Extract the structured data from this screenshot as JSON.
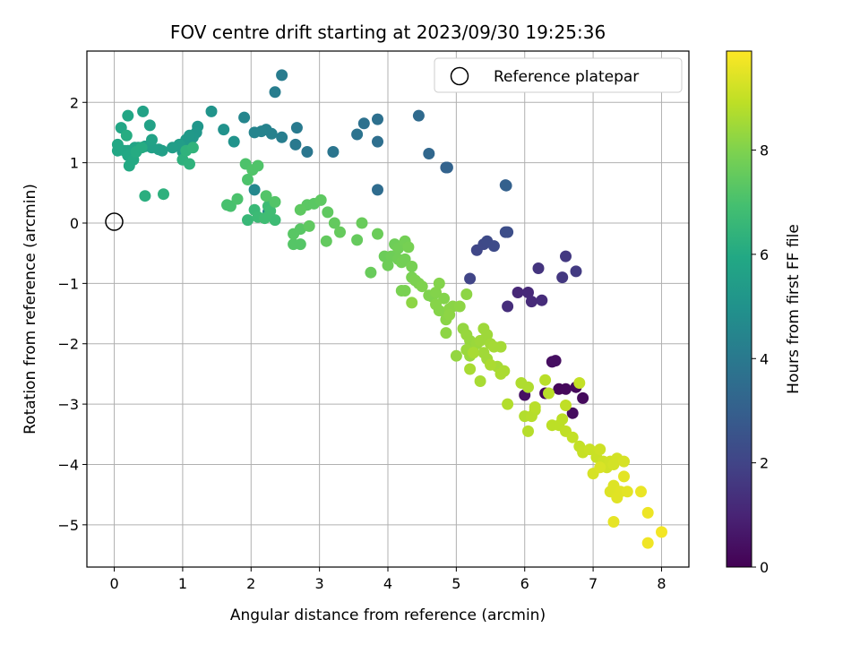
{
  "chart_data": {
    "type": "scatter",
    "title": "FOV centre drift starting at 2023/09/30 19:25:36",
    "xlabel": "Angular distance from reference (arcmin)",
    "ylabel": "Rotation from reference (arcmin)",
    "xlim": [
      -0.4,
      8.4
    ],
    "ylim": [
      -5.7,
      2.85
    ],
    "xticks": [
      "0",
      "1",
      "2",
      "3",
      "4",
      "5",
      "6",
      "7",
      "8"
    ],
    "yticks": [
      "−5",
      "−4",
      "−3",
      "−2",
      "−1",
      "0",
      "1",
      "2"
    ],
    "grid": true,
    "legend": {
      "position": "upper-right",
      "label": "Reference platepar"
    },
    "reference_point": {
      "x": 0,
      "y": 0
    },
    "colorbar": {
      "label": "Hours from first FF file",
      "min": 0,
      "max": 9.9,
      "ticks": [
        "0",
        "2",
        "4",
        "6",
        "8"
      ],
      "colormap": "viridis"
    },
    "points_columns": [
      "x",
      "y",
      "hours"
    ],
    "points": [
      [
        6.3,
        -2.82,
        0.1
      ],
      [
        6.5,
        -2.75,
        0.15
      ],
      [
        6.6,
        -2.75,
        0.2
      ],
      [
        6.75,
        -2.72,
        0.2
      ],
      [
        6.85,
        -2.9,
        0.25
      ],
      [
        6.7,
        -3.15,
        0.3
      ],
      [
        6.4,
        -2.3,
        0.35
      ],
      [
        6.45,
        -2.28,
        0.4
      ],
      [
        6.0,
        -2.85,
        0.45
      ],
      [
        5.9,
        -1.15,
        1.1
      ],
      [
        6.05,
        -1.15,
        1.15
      ],
      [
        6.1,
        -1.3,
        1.2
      ],
      [
        6.25,
        -1.28,
        1.25
      ],
      [
        5.75,
        -1.38,
        1.3
      ],
      [
        6.2,
        -0.75,
        1.5
      ],
      [
        6.55,
        -0.9,
        1.6
      ],
      [
        6.6,
        -0.55,
        1.65
      ],
      [
        6.75,
        -0.8,
        1.7
      ],
      [
        5.2,
        -0.92,
        2.0
      ],
      [
        5.3,
        -0.45,
        2.1
      ],
      [
        5.4,
        -0.35,
        2.15
      ],
      [
        5.45,
        -0.3,
        2.2
      ],
      [
        5.55,
        -0.38,
        2.25
      ],
      [
        5.72,
        -0.15,
        2.3
      ],
      [
        5.75,
        -0.15,
        2.35
      ],
      [
        5.72,
        0.63,
        3.0
      ],
      [
        5.73,
        0.62,
        3.05
      ],
      [
        4.85,
        0.92,
        3.1
      ],
      [
        4.87,
        0.92,
        3.12
      ],
      [
        4.6,
        1.15,
        3.3
      ],
      [
        4.45,
        1.78,
        3.4
      ],
      [
        3.85,
        0.55,
        3.5
      ],
      [
        3.85,
        1.35,
        3.6
      ],
      [
        3.85,
        1.72,
        3.65
      ],
      [
        3.65,
        1.65,
        3.7
      ],
      [
        3.55,
        1.47,
        3.75
      ],
      [
        3.2,
        1.18,
        3.85
      ],
      [
        2.82,
        1.18,
        3.9
      ],
      [
        2.65,
        1.3,
        4.0
      ],
      [
        2.67,
        1.58,
        4.05
      ],
      [
        2.45,
        2.45,
        4.1
      ],
      [
        2.35,
        2.17,
        4.15
      ],
      [
        2.45,
        1.42,
        4.2
      ],
      [
        2.3,
        1.48,
        4.3
      ],
      [
        2.22,
        1.55,
        4.35
      ],
      [
        2.15,
        1.52,
        4.4
      ],
      [
        2.05,
        1.5,
        4.45
      ],
      [
        1.9,
        1.75,
        4.5
      ],
      [
        2.25,
        0.18,
        4.55
      ],
      [
        2.05,
        0.55,
        4.6
      ],
      [
        1.6,
        1.55,
        5.0
      ],
      [
        1.75,
        1.35,
        5.05
      ],
      [
        1.42,
        1.85,
        5.1
      ],
      [
        1.22,
        1.6,
        5.15
      ],
      [
        1.2,
        1.5,
        5.2
      ],
      [
        1.15,
        1.42,
        5.25
      ],
      [
        1.05,
        1.38,
        5.3
      ],
      [
        1.1,
        1.45,
        5.3
      ],
      [
        1.0,
        1.18,
        5.4
      ],
      [
        0.95,
        1.3,
        5.45
      ],
      [
        0.85,
        1.25,
        5.5
      ],
      [
        0.7,
        1.2,
        5.55
      ],
      [
        0.65,
        1.22,
        5.55
      ],
      [
        0.55,
        1.25,
        5.6
      ],
      [
        0.45,
        1.27,
        5.6
      ],
      [
        0.52,
        1.62,
        5.65
      ],
      [
        0.42,
        1.85,
        5.7
      ],
      [
        0.55,
        1.38,
        5.7
      ],
      [
        0.35,
        1.25,
        5.75
      ],
      [
        0.3,
        1.25,
        5.75
      ],
      [
        0.2,
        1.2,
        5.8
      ],
      [
        0.15,
        1.2,
        5.8
      ],
      [
        0.1,
        1.58,
        5.85
      ],
      [
        0.2,
        1.78,
        5.85
      ],
      [
        0.05,
        1.2,
        5.9
      ],
      [
        0.05,
        1.3,
        5.9
      ],
      [
        0.2,
        1.12,
        5.95
      ],
      [
        0.22,
        0.95,
        6.0
      ],
      [
        0.28,
        1.05,
        6.0
      ],
      [
        0.32,
        1.18,
        6.05
      ],
      [
        0.4,
        1.25,
        6.05
      ],
      [
        0.18,
        1.45,
        6.1
      ],
      [
        0.45,
        0.45,
        6.2
      ],
      [
        0.72,
        0.48,
        6.3
      ],
      [
        1.0,
        1.05,
        6.3
      ],
      [
        1.1,
        0.98,
        6.35
      ],
      [
        1.05,
        1.2,
        6.35
      ],
      [
        1.15,
        1.25,
        6.4
      ],
      [
        1.95,
        0.05,
        6.6
      ],
      [
        2.05,
        0.22,
        6.65
      ],
      [
        2.1,
        0.1,
        6.7
      ],
      [
        2.25,
        0.28,
        6.75
      ],
      [
        2.35,
        0.05,
        6.75
      ],
      [
        2.2,
        0.08,
        6.8
      ],
      [
        2.28,
        0.2,
        6.8
      ],
      [
        1.65,
        0.3,
        7.0
      ],
      [
        1.7,
        0.28,
        7.0
      ],
      [
        1.8,
        0.4,
        7.05
      ],
      [
        1.95,
        0.72,
        7.1
      ],
      [
        1.92,
        0.98,
        7.1
      ],
      [
        2.02,
        0.88,
        7.15
      ],
      [
        2.1,
        0.95,
        7.15
      ],
      [
        2.22,
        0.45,
        7.2
      ],
      [
        2.35,
        0.35,
        7.2
      ],
      [
        2.62,
        -0.35,
        7.25
      ],
      [
        2.72,
        -0.35,
        7.25
      ],
      [
        2.62,
        -0.18,
        7.3
      ],
      [
        2.72,
        -0.1,
        7.3
      ],
      [
        2.82,
        0.3,
        7.35
      ],
      [
        2.92,
        0.32,
        7.35
      ],
      [
        2.72,
        0.22,
        7.4
      ],
      [
        3.02,
        0.38,
        7.4
      ],
      [
        2.85,
        -0.05,
        7.45
      ],
      [
        3.12,
        0.18,
        7.45
      ],
      [
        3.22,
        0.0,
        7.5
      ],
      [
        3.1,
        -0.3,
        7.5
      ],
      [
        3.3,
        -0.15,
        7.55
      ],
      [
        3.55,
        -0.28,
        7.55
      ],
      [
        3.62,
        0.0,
        7.6
      ],
      [
        3.75,
        -0.82,
        7.6
      ],
      [
        3.85,
        -0.18,
        7.65
      ],
      [
        3.95,
        -0.55,
        7.65
      ],
      [
        4.0,
        -0.7,
        7.7
      ],
      [
        4.05,
        -0.55,
        7.7
      ],
      [
        4.1,
        -0.35,
        7.7
      ],
      [
        4.15,
        -0.6,
        7.75
      ],
      [
        4.15,
        -0.42,
        7.75
      ],
      [
        4.2,
        -0.65,
        7.8
      ],
      [
        4.25,
        -0.3,
        7.8
      ],
      [
        4.25,
        -0.6,
        7.8
      ],
      [
        4.3,
        -0.4,
        7.85
      ],
      [
        4.35,
        -0.72,
        7.85
      ],
      [
        4.2,
        -1.12,
        7.9
      ],
      [
        4.25,
        -1.12,
        7.9
      ],
      [
        4.35,
        -0.9,
        7.9
      ],
      [
        4.4,
        -0.95,
        7.95
      ],
      [
        4.45,
        -1.0,
        7.95
      ],
      [
        4.5,
        -1.05,
        8.0
      ],
      [
        4.6,
        -1.2,
        8.0
      ],
      [
        4.65,
        -1.22,
        8.0
      ],
      [
        4.7,
        -1.15,
        8.05
      ],
      [
        4.75,
        -1.0,
        8.05
      ],
      [
        4.82,
        -1.25,
        8.05
      ],
      [
        4.7,
        -1.35,
        8.1
      ],
      [
        4.75,
        -1.45,
        8.1
      ],
      [
        4.85,
        -1.5,
        8.1
      ],
      [
        4.85,
        -1.6,
        8.15
      ],
      [
        4.9,
        -1.42,
        8.15
      ],
      [
        4.95,
        -1.38,
        8.15
      ],
      [
        5.05,
        -1.38,
        8.2
      ],
      [
        5.15,
        -1.18,
        8.2
      ],
      [
        4.9,
        -1.52,
        8.2
      ],
      [
        4.85,
        -1.82,
        8.2
      ],
      [
        4.35,
        -1.32,
        8.2
      ],
      [
        5.0,
        -2.2,
        8.3
      ],
      [
        5.1,
        -1.75,
        8.3
      ],
      [
        5.15,
        -1.85,
        8.35
      ],
      [
        5.2,
        -1.95,
        8.35
      ],
      [
        5.25,
        -2.05,
        8.35
      ],
      [
        5.3,
        -2.0,
        8.4
      ],
      [
        5.15,
        -2.1,
        8.4
      ],
      [
        5.2,
        -2.2,
        8.4
      ],
      [
        5.35,
        -1.95,
        8.45
      ],
      [
        5.4,
        -1.75,
        8.45
      ],
      [
        5.45,
        -1.85,
        8.45
      ],
      [
        5.5,
        -2.0,
        8.5
      ],
      [
        5.4,
        -2.15,
        8.5
      ],
      [
        5.45,
        -2.25,
        8.5
      ],
      [
        5.55,
        -2.05,
        8.55
      ],
      [
        5.65,
        -2.05,
        8.55
      ],
      [
        5.6,
        -2.38,
        8.55
      ],
      [
        5.25,
        -2.15,
        8.6
      ],
      [
        5.2,
        -2.42,
        8.6
      ],
      [
        5.35,
        -2.62,
        8.6
      ],
      [
        5.5,
        -2.35,
        8.65
      ],
      [
        5.65,
        -2.5,
        8.65
      ],
      [
        5.7,
        -2.45,
        8.65
      ],
      [
        5.95,
        -2.65,
        8.7
      ],
      [
        6.05,
        -2.72,
        8.7
      ],
      [
        5.75,
        -3.0,
        8.75
      ],
      [
        6.0,
        -3.2,
        8.75
      ],
      [
        6.05,
        -3.45,
        8.8
      ],
      [
        6.1,
        -3.2,
        8.8
      ],
      [
        6.15,
        -3.1,
        8.8
      ],
      [
        6.15,
        -3.05,
        8.85
      ],
      [
        6.3,
        -2.6,
        8.85
      ],
      [
        6.35,
        -2.82,
        8.85
      ],
      [
        6.4,
        -3.35,
        8.9
      ],
      [
        6.5,
        -3.35,
        8.9
      ],
      [
        6.55,
        -3.25,
        8.9
      ],
      [
        6.6,
        -3.02,
        8.95
      ],
      [
        6.6,
        -3.45,
        8.95
      ],
      [
        6.7,
        -3.55,
        9.0
      ],
      [
        6.8,
        -3.7,
        9.0
      ],
      [
        6.85,
        -3.8,
        9.05
      ],
      [
        6.8,
        -2.65,
        9.0
      ],
      [
        6.95,
        -3.75,
        9.1
      ],
      [
        7.05,
        -3.88,
        9.1
      ],
      [
        7.1,
        -3.75,
        9.15
      ],
      [
        7.15,
        -3.95,
        9.15
      ],
      [
        7.2,
        -4.05,
        9.2
      ],
      [
        7.25,
        -3.95,
        9.2
      ],
      [
        7.3,
        -4.0,
        9.25
      ],
      [
        7.35,
        -3.9,
        9.25
      ],
      [
        7.45,
        -3.95,
        9.3
      ],
      [
        7.0,
        -4.15,
        9.3
      ],
      [
        7.1,
        -4.05,
        9.35
      ],
      [
        7.25,
        -4.45,
        9.4
      ],
      [
        7.3,
        -4.35,
        9.4
      ],
      [
        7.35,
        -4.55,
        9.45
      ],
      [
        7.4,
        -4.45,
        9.45
      ],
      [
        7.45,
        -4.2,
        9.5
      ],
      [
        7.5,
        -4.45,
        9.5
      ],
      [
        7.3,
        -4.95,
        9.55
      ],
      [
        7.7,
        -4.45,
        9.6
      ],
      [
        7.8,
        -4.8,
        9.65
      ],
      [
        7.8,
        -5.3,
        9.7
      ],
      [
        8.0,
        -5.12,
        9.75
      ]
    ]
  }
}
